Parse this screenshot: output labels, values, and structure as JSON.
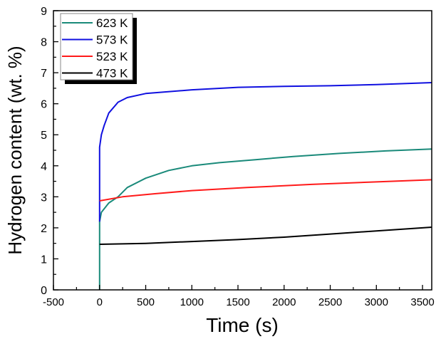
{
  "chart_data": {
    "type": "line",
    "title": "",
    "xlabel": "Time (s)",
    "ylabel": "Hydrogen content (wt. %)",
    "xlim": [
      -500,
      3600
    ],
    "ylim": [
      0,
      9
    ],
    "xticks": [
      -500,
      0,
      500,
      1000,
      1500,
      2000,
      2500,
      3000,
      3500
    ],
    "yticks": [
      0,
      1,
      2,
      3,
      4,
      5,
      6,
      7,
      8,
      9
    ],
    "grid": false,
    "legend_position": "top-left",
    "series": [
      {
        "name": "623 K",
        "color": "#1a8a7a",
        "x": [
          0,
          0,
          20,
          100,
          200,
          300,
          500,
          750,
          1000,
          1300,
          1700,
          2100,
          2600,
          3100,
          3600
        ],
        "y": [
          0,
          2.2,
          2.5,
          2.8,
          3.0,
          3.3,
          3.6,
          3.85,
          4.0,
          4.1,
          4.2,
          4.3,
          4.4,
          4.48,
          4.54
        ]
      },
      {
        "name": "573 K",
        "color": "#1010e0",
        "x": [
          0,
          0,
          0,
          20,
          50,
          100,
          200,
          300,
          500,
          1000,
          1500,
          2000,
          2500,
          3000,
          3600
        ],
        "y": [
          2.2,
          4.6,
          4.6,
          5.0,
          5.3,
          5.7,
          6.05,
          6.2,
          6.33,
          6.45,
          6.53,
          6.56,
          6.58,
          6.62,
          6.68
        ]
      },
      {
        "name": "523 K",
        "color": "#ff1a1a",
        "x": [
          0,
          250,
          600,
          1000,
          1600,
          2300,
          3000,
          3600
        ],
        "y": [
          2.87,
          3.0,
          3.1,
          3.2,
          3.3,
          3.4,
          3.48,
          3.55
        ]
      },
      {
        "name": "473 K",
        "color": "#000000",
        "x": [
          0,
          500,
          1000,
          1500,
          2000,
          2500,
          3000,
          3600
        ],
        "y": [
          1.47,
          1.5,
          1.56,
          1.62,
          1.7,
          1.8,
          1.9,
          2.02
        ]
      }
    ]
  }
}
